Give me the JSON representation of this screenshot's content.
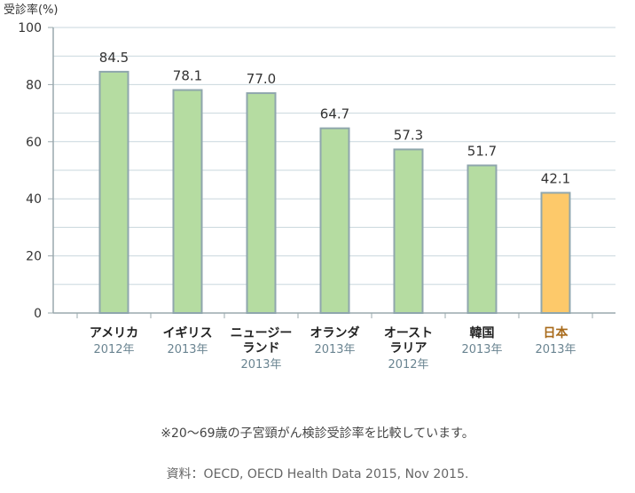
{
  "chart_data": {
    "type": "bar",
    "ylabel": "受診率(%)",
    "ylim": [
      0,
      100
    ],
    "yticks": [
      0,
      20,
      40,
      60,
      80,
      100
    ],
    "grid": true,
    "categories": [
      {
        "name": [
          "アメリカ"
        ],
        "year": "2012年",
        "value": 84.5,
        "value_label": "84.5",
        "highlight": false
      },
      {
        "name": [
          "イギリス"
        ],
        "year": "2013年",
        "value": 78.1,
        "value_label": "78.1",
        "highlight": false
      },
      {
        "name": [
          "ニュージー",
          "ランド"
        ],
        "year": "2013年",
        "value": 77.0,
        "value_label": "77.0",
        "highlight": false
      },
      {
        "name": [
          "オランダ"
        ],
        "year": "2013年",
        "value": 64.7,
        "value_label": "64.7",
        "highlight": false
      },
      {
        "name": [
          "オースト",
          "ラリア"
        ],
        "year": "2012年",
        "value": 57.3,
        "value_label": "57.3",
        "highlight": false
      },
      {
        "name": [
          "韓国"
        ],
        "year": "2013年",
        "value": 51.7,
        "value_label": "51.7",
        "highlight": false
      },
      {
        "name": [
          "日本"
        ],
        "year": "2013年",
        "value": 42.1,
        "value_label": "42.1",
        "highlight": true
      }
    ],
    "colors": {
      "bar": "#b5dca1",
      "bar_border": "#8fa6ad",
      "highlight_bar": "#fdc96a",
      "highlight_border": "#8fa6ad",
      "highlight_label": "#a86a1a",
      "grid": "#c9d7dd",
      "axis": "#9aa8ad",
      "year_text": "#6a8491"
    }
  },
  "notes": {
    "comparison": "※20〜69歳の子宮頸がん検診受診率を比較しています。",
    "source": "資料：OECD, OECD Health Data 2015, Nov 2015."
  }
}
